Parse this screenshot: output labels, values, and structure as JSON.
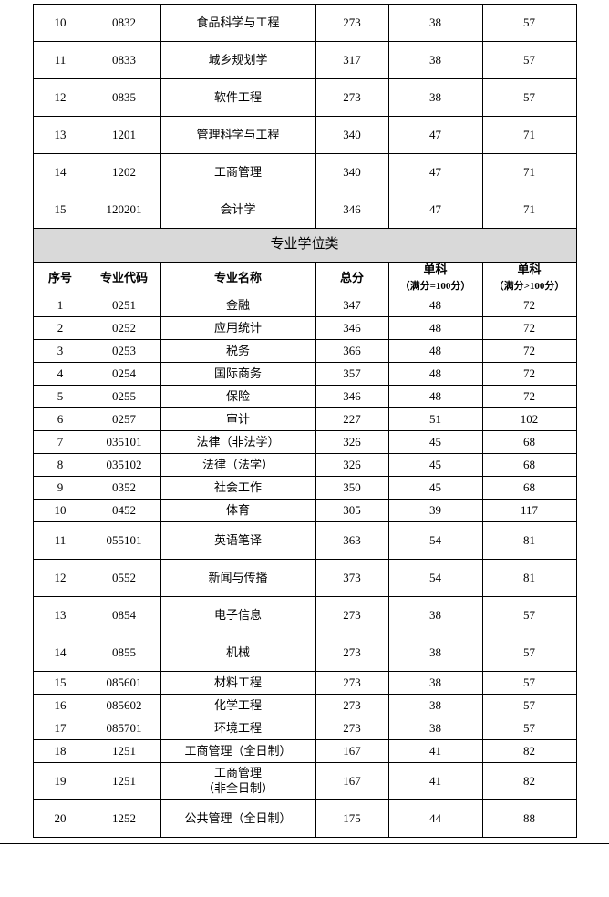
{
  "top_rows": [
    {
      "idx": "10",
      "code": "0832",
      "name": "食品科学与工程",
      "total": "273",
      "s1": "38",
      "s2": "57",
      "height": "h-tall"
    },
    {
      "idx": "11",
      "code": "0833",
      "name": "城乡规划学",
      "total": "317",
      "s1": "38",
      "s2": "57",
      "height": "h-tall"
    },
    {
      "idx": "12",
      "code": "0835",
      "name": "软件工程",
      "total": "273",
      "s1": "38",
      "s2": "57",
      "height": "h-tall"
    },
    {
      "idx": "13",
      "code": "1201",
      "name": "管理科学与工程",
      "total": "340",
      "s1": "47",
      "s2": "71",
      "height": "h-tall"
    },
    {
      "idx": "14",
      "code": "1202",
      "name": "工商管理",
      "total": "340",
      "s1": "47",
      "s2": "71",
      "height": "h-tall"
    },
    {
      "idx": "15",
      "code": "120201",
      "name": "会计学",
      "total": "346",
      "s1": "47",
      "s2": "71",
      "height": "h-tall"
    }
  ],
  "section_title": "专业学位类",
  "headers": {
    "c1": "序号",
    "c2": "专业代码",
    "c3": "专业名称",
    "c4": "总分",
    "c5a": "单科",
    "c5b": "（满分=100分）",
    "c6a": "单科",
    "c6b": "（满分>100分）"
  },
  "rows": [
    {
      "idx": "1",
      "code": "0251",
      "name": "金融",
      "total": "347",
      "s1": "48",
      "s2": "72",
      "height": "h-short"
    },
    {
      "idx": "2",
      "code": "0252",
      "name": "应用统计",
      "total": "346",
      "s1": "48",
      "s2": "72",
      "height": "h-short"
    },
    {
      "idx": "3",
      "code": "0253",
      "name": "税务",
      "total": "366",
      "s1": "48",
      "s2": "72",
      "height": "h-short"
    },
    {
      "idx": "4",
      "code": "0254",
      "name": "国际商务",
      "total": "357",
      "s1": "48",
      "s2": "72",
      "height": "h-short"
    },
    {
      "idx": "5",
      "code": "0255",
      "name": "保险",
      "total": "346",
      "s1": "48",
      "s2": "72",
      "height": "h-short"
    },
    {
      "idx": "6",
      "code": "0257",
      "name": "审计",
      "total": "227",
      "s1": "51",
      "s2": "102",
      "height": "h-short"
    },
    {
      "idx": "7",
      "code": "035101",
      "name": "法律（非法学）",
      "total": "326",
      "s1": "45",
      "s2": "68",
      "height": "h-short"
    },
    {
      "idx": "8",
      "code": "035102",
      "name": "法律（法学）",
      "total": "326",
      "s1": "45",
      "s2": "68",
      "height": "h-short"
    },
    {
      "idx": "9",
      "code": "0352",
      "name": "社会工作",
      "total": "350",
      "s1": "45",
      "s2": "68",
      "height": "h-short"
    },
    {
      "idx": "10",
      "code": "0452",
      "name": "体育",
      "total": "305",
      "s1": "39",
      "s2": "117",
      "height": "h-short"
    },
    {
      "idx": "11",
      "code": "055101",
      "name": "英语笔译",
      "total": "363",
      "s1": "54",
      "s2": "81",
      "height": "h-tall"
    },
    {
      "idx": "12",
      "code": "0552",
      "name": "新闻与传播",
      "total": "373",
      "s1": "54",
      "s2": "81",
      "height": "h-tall"
    },
    {
      "idx": "13",
      "code": "0854",
      "name": "电子信息",
      "total": "273",
      "s1": "38",
      "s2": "57",
      "height": "h-tall"
    },
    {
      "idx": "14",
      "code": "0855",
      "name": "机械",
      "total": "273",
      "s1": "38",
      "s2": "57",
      "height": "h-tall"
    },
    {
      "idx": "15",
      "code": "085601",
      "name": "材料工程",
      "total": "273",
      "s1": "38",
      "s2": "57",
      "height": "h-short"
    },
    {
      "idx": "16",
      "code": "085602",
      "name": "化学工程",
      "total": "273",
      "s1": "38",
      "s2": "57",
      "height": "h-short"
    },
    {
      "idx": "17",
      "code": "085701",
      "name": "环境工程",
      "total": "273",
      "s1": "38",
      "s2": "57",
      "height": "h-short"
    },
    {
      "idx": "18",
      "code": "1251",
      "name": "工商管理（全日制）",
      "total": "167",
      "s1": "41",
      "s2": "82",
      "height": "h-short"
    },
    {
      "idx": "19",
      "code": "1251",
      "name": "工商管理<br>（非全日制）",
      "total": "167",
      "s1": "41",
      "s2": "82",
      "height": "h-tall"
    },
    {
      "idx": "20",
      "code": "1252",
      "name": "公共管理（全日制）",
      "total": "175",
      "s1": "44",
      "s2": "88",
      "height": "h-tall"
    }
  ]
}
